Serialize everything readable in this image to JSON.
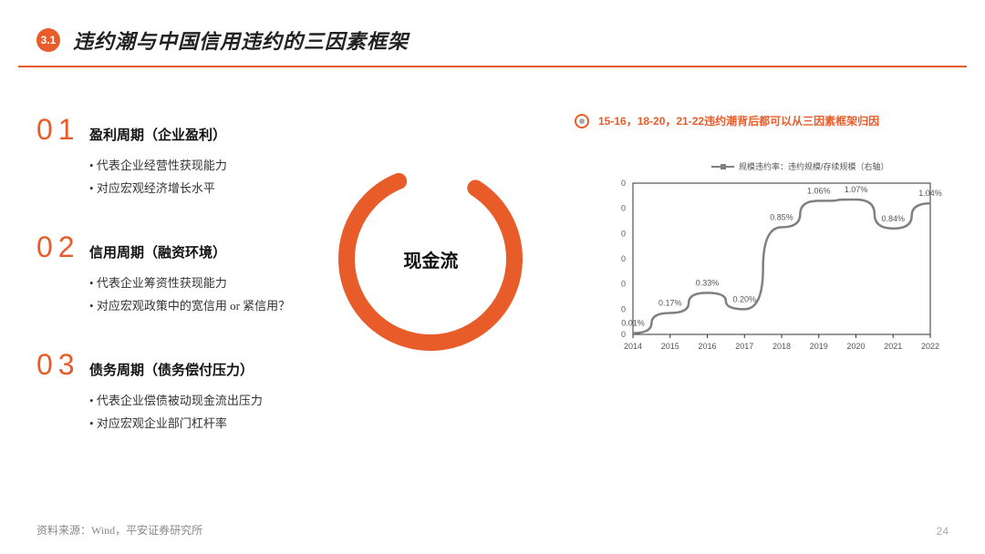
{
  "header": {
    "section_number": "3.1",
    "title": "违约潮与中国信用违约的三因素框架"
  },
  "factors": [
    {
      "num": "01",
      "title": "盈利周期（企业盈利）",
      "bullets": [
        "代表企业经营性获现能力",
        "对应宏观经济增长水平"
      ]
    },
    {
      "num": "02",
      "title": "信用周期（融资环境）",
      "bullets": [
        "代表企业筹资性获现能力",
        "对应宏观政策中的宽信用 or 紧信用？"
      ]
    },
    {
      "num": "03",
      "title": "债务周期（债务偿付压力）",
      "bullets": [
        "代表企业偿债被动现金流出压力",
        "对应宏观企业部门杠杆率"
      ]
    }
  ],
  "ring": {
    "label": "现金流",
    "color": "#e85c2a",
    "gap_color": "#ffffff"
  },
  "callout": {
    "text": "15-16，18-20，21-22违约潮背后都可以从三因素框架归因"
  },
  "chart": {
    "legend": "规模违约率：违约规模/存续规模（右轴）",
    "line_color": "#808080",
    "grid_color": "#d0d0d0",
    "background_color": "#ffffff",
    "axis_color": "#333333",
    "label_fontsize": 10,
    "xlim": [
      "2014",
      "2022"
    ],
    "ylim": [
      0,
      1.2
    ],
    "categories": [
      "2014",
      "2015",
      "2016",
      "2017",
      "2018",
      "2019",
      "2020",
      "2021",
      "2022"
    ],
    "values": [
      0.01,
      0.17,
      0.33,
      0.2,
      0.85,
      1.06,
      1.07,
      0.84,
      1.04
    ],
    "point_labels": [
      "0.01%",
      "0.17%",
      "0.33%",
      "0.20%",
      "0.85%",
      "1.06%",
      "1.07%",
      "0.84%",
      "1.04%"
    ],
    "ytick_marks": [
      0,
      0,
      0,
      0,
      0,
      0,
      0
    ]
  },
  "footer": {
    "source": "资料来源：Wind，平安证券研究所",
    "page": "24"
  },
  "colors": {
    "accent": "#e85c2a",
    "text": "#222222",
    "muted": "#888888"
  }
}
